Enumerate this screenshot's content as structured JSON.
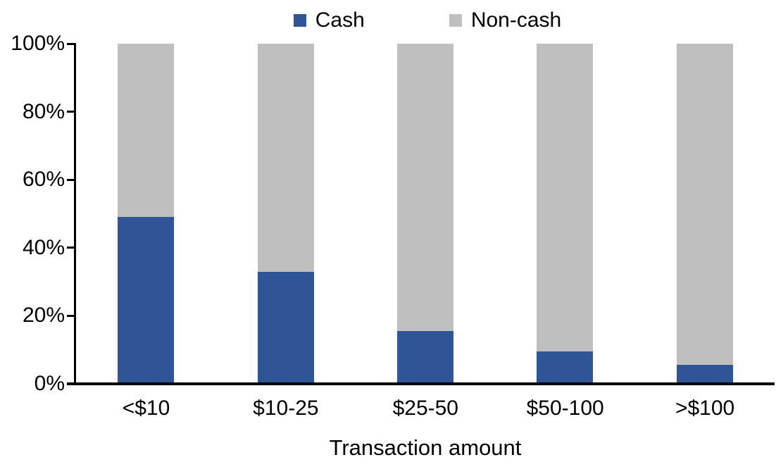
{
  "chart_data": {
    "type": "bar",
    "stacked": true,
    "percent_stacked": true,
    "title": "",
    "categories": [
      "<$10",
      "$10-25",
      "$25-50",
      "$50-100",
      ">$100"
    ],
    "series": [
      {
        "name": "Cash",
        "color": "#2F5597",
        "values": [
          49,
          33,
          15.5,
          9.5,
          5.5
        ]
      },
      {
        "name": "Non-cash",
        "color": "#BFBFBF",
        "values": [
          51,
          67,
          84.5,
          90.5,
          94.5
        ]
      }
    ],
    "xlabel": "Transaction amount",
    "ylabel": "",
    "ylim": [
      0,
      100
    ],
    "y_ticks": [
      {
        "value": 0,
        "label": "0%"
      },
      {
        "value": 20,
        "label": "20%"
      },
      {
        "value": 40,
        "label": "40%"
      },
      {
        "value": 60,
        "label": "60%"
      },
      {
        "value": 80,
        "label": "80%"
      },
      {
        "value": 100,
        "label": "100%"
      }
    ],
    "grid": false,
    "legend_position": "top",
    "axis_color": "#000000",
    "background_color": "#FFFFFF",
    "text_color": "#000000"
  }
}
